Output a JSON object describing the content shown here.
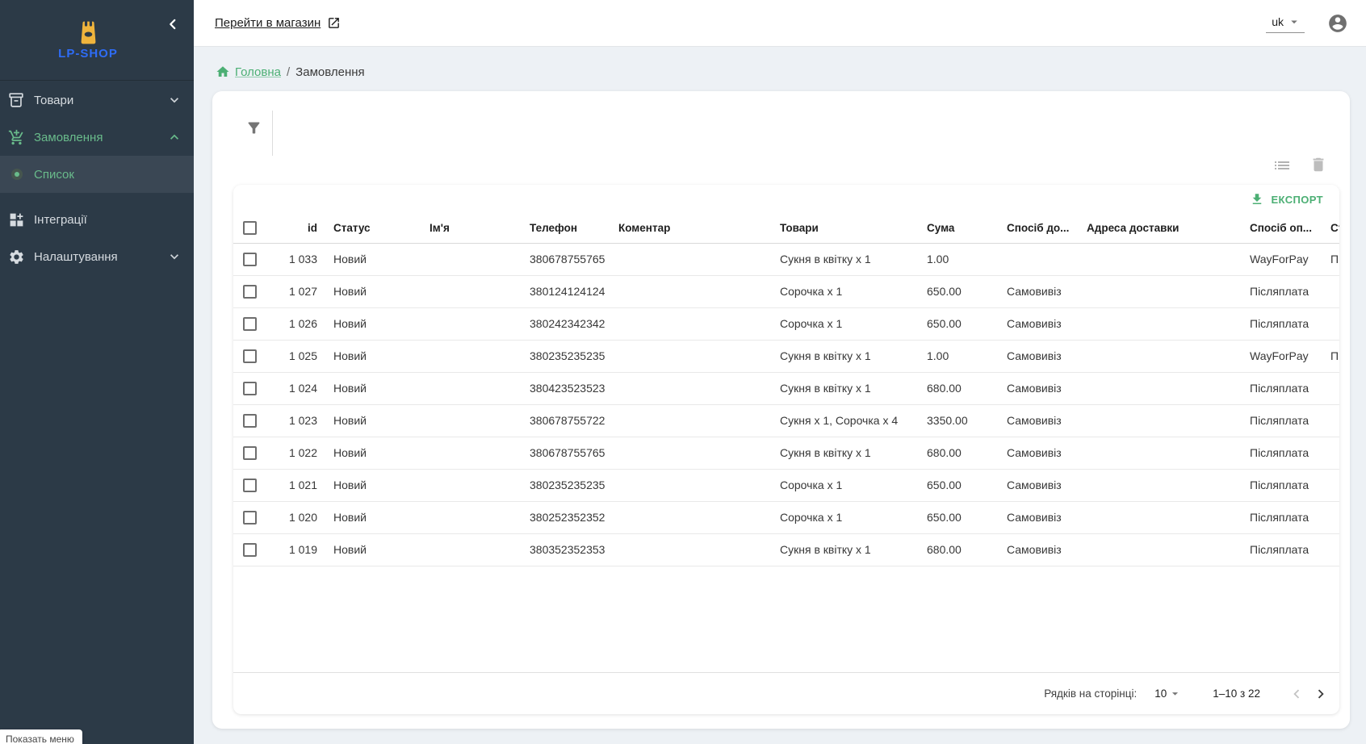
{
  "theme": {
    "sidebar_bg": "#2c3a47",
    "accent_green": "#4caf74",
    "sidebar_green": "#69bb8b",
    "logo_yellow": "#f0b43c",
    "logo_blue": "#2e6cf6",
    "page_bg": "#edf1f5"
  },
  "sidebar": {
    "brand": "LP-SHOP",
    "collapse_icon": "chevron-left-icon",
    "items": [
      {
        "label": "Товари",
        "icon": "box-icon",
        "chevron": "down"
      },
      {
        "label": "Замовлення",
        "icon": "add-cart-icon",
        "chevron": "up",
        "active": true
      },
      {
        "label": "Список",
        "icon": "dot-icon",
        "submenu": true,
        "selected": true,
        "active": true
      },
      {
        "label": "Інтеграції",
        "icon": "modules-icon"
      },
      {
        "label": "Налаштування",
        "icon": "gear-icon",
        "chevron": "down"
      }
    ],
    "tooltip": "Показать меню"
  },
  "appbar": {
    "store_link": "Перейти в магазин",
    "store_link_icon": "external-link-icon",
    "language": "uk",
    "avatar_icon": "account-icon"
  },
  "breadcrumb": {
    "home_icon": "home-icon",
    "home": "Головна",
    "separator": "/",
    "current": "Замовлення"
  },
  "list_toolbar": {
    "filter_icon": "filter-funnel-icon",
    "columns_icon": "list-icon",
    "delete_icon": "trash-icon",
    "export_label": "ЕКСПОРТ",
    "export_icon": "download-icon"
  },
  "table": {
    "columns": [
      {
        "key": "id",
        "label": "id"
      },
      {
        "key": "status",
        "label": "Статус"
      },
      {
        "key": "name",
        "label": "Ім'я"
      },
      {
        "key": "phone",
        "label": "Телефон"
      },
      {
        "key": "comment",
        "label": "Коментар"
      },
      {
        "key": "goods",
        "label": "Товари"
      },
      {
        "key": "sum",
        "label": "Сума"
      },
      {
        "key": "delivery",
        "label": "Спосіб до..."
      },
      {
        "key": "address",
        "label": "Адреса доставки"
      },
      {
        "key": "payment",
        "label": "Спосіб оп..."
      },
      {
        "key": "pstatus",
        "label": "Ст"
      }
    ],
    "rows": [
      {
        "cells": [
          "1 033",
          "Новий",
          "",
          "380678755765",
          "",
          "Сукня в квітку х 1",
          "1.00",
          "",
          "",
          "WayForPay",
          "Пі"
        ]
      },
      {
        "cells": [
          "1 027",
          "Новий",
          "",
          "380124124124",
          "",
          "Сорочка х 1",
          "650.00",
          "Самовивіз",
          "",
          "Післяплата",
          ""
        ]
      },
      {
        "cells": [
          "1 026",
          "Новий",
          "",
          "380242342342",
          "",
          "Сорочка х 1",
          "650.00",
          "Самовивіз",
          "",
          "Післяплата",
          ""
        ]
      },
      {
        "cells": [
          "1 025",
          "Новий",
          "",
          "380235235235",
          "",
          "Сукня в квітку х 1",
          "1.00",
          "Самовивіз",
          "",
          "WayForPay",
          "Пі"
        ]
      },
      {
        "cells": [
          "1 024",
          "Новий",
          "",
          "380423523523",
          "",
          "Сукня в квітку х 1",
          "680.00",
          "Самовивіз",
          "",
          "Післяплата",
          ""
        ]
      },
      {
        "cells": [
          "1 023",
          "Новий",
          "",
          "380678755722",
          "",
          "Сукня х 1, Сорочка х 4",
          "3350.00",
          "Самовивіз",
          "",
          "Післяплата",
          ""
        ]
      },
      {
        "cells": [
          "1 022",
          "Новий",
          "",
          "380678755765",
          "",
          "Сукня в квітку х 1",
          "680.00",
          "Самовивіз",
          "",
          "Післяплата",
          ""
        ]
      },
      {
        "cells": [
          "1 021",
          "Новий",
          "",
          "380235235235",
          "",
          "Сорочка х 1",
          "650.00",
          "Самовивіз",
          "",
          "Післяплата",
          ""
        ]
      },
      {
        "cells": [
          "1 020",
          "Новий",
          "",
          "380252352352",
          "",
          "Сорочка х 1",
          "650.00",
          "Самовивіз",
          "",
          "Післяплата",
          ""
        ]
      },
      {
        "cells": [
          "1 019",
          "Новий",
          "",
          "380352352353",
          "",
          "Сукня в квітку х 1",
          "680.00",
          "Самовивіз",
          "",
          "Післяплата",
          ""
        ]
      }
    ]
  },
  "pagination": {
    "rows_per_page_label": "Рядків на сторінці:",
    "rows_per_page": "10",
    "range": "1–10 з 22",
    "prev_icon": "chevron-left-icon",
    "next_icon": "chevron-right-icon"
  }
}
